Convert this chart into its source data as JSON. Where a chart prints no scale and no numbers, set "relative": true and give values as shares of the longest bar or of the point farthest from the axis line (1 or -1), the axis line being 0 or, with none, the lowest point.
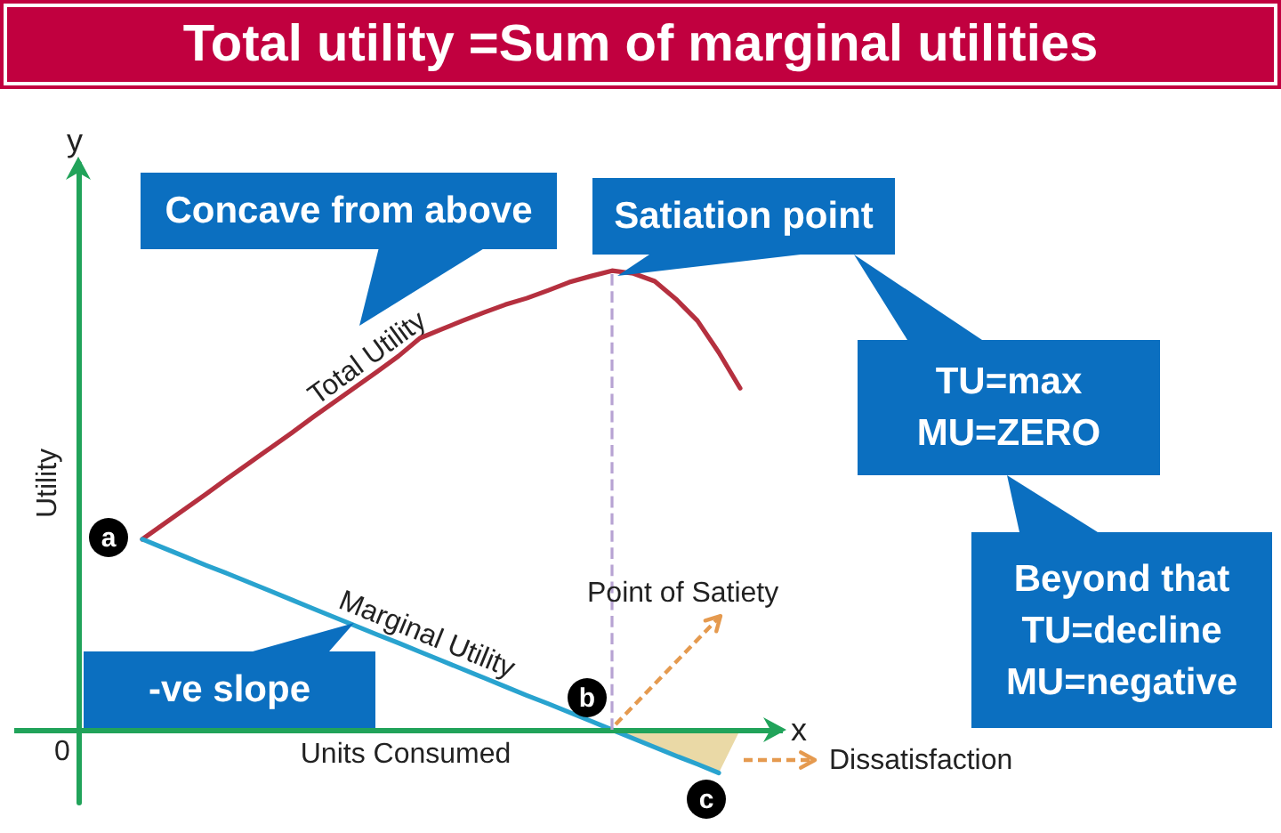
{
  "chart_data": {
    "type": "line",
    "title": "Total utility =Sum of marginal utilities",
    "xlabel": "Units Consumed",
    "ylabel": "Utility",
    "relative": true,
    "categories": [
      null,
      null,
      null,
      null,
      null,
      null,
      null,
      null,
      null,
      null,
      null,
      null,
      null,
      null,
      null,
      null,
      null,
      null,
      null,
      null,
      null,
      null,
      null,
      null,
      null,
      null,
      null,
      null,
      null,
      null,
      null,
      null,
      null,
      null,
      null,
      null,
      null
    ],
    "series": [
      {
        "name": "Total Utility",
        "color": "#b5303f",
        "values": [
          null,
          null,
          null,
          null,
          null,
          null,
          0.415,
          0.448,
          0.481,
          0.514,
          0.548,
          0.581,
          0.614,
          0.647,
          0.681,
          0.714,
          0.747,
          0.78,
          0.814,
          0.853,
          0.872,
          0.891,
          0.909,
          0.926,
          0.94,
          0.957,
          0.975,
          0.988,
          1,
          0.994,
          0.977,
          0.938,
          0.891,
          0.822,
          0.744,
          null,
          null
        ]
      },
      {
        "name": "Marginal Utility",
        "color": "#29a3cf",
        "values": [
          null,
          null,
          null,
          null,
          null,
          null,
          0.415,
          0.396,
          0.377,
          0.358,
          0.34,
          0.321,
          0.302,
          0.283,
          0.264,
          0.245,
          0.226,
          0.207,
          0.189,
          0.17,
          0.151,
          0.132,
          0.113,
          0.094,
          0.075,
          0.057,
          0.038,
          0.019,
          0,
          -0.019,
          -0.038,
          -0.057,
          -0.075,
          -0.094,
          null,
          null,
          null
        ]
      },
      {
        "type": "area",
        "color": "#ead9a6",
        "values": [
          null,
          null,
          null,
          null,
          null,
          null,
          null,
          null,
          null,
          null,
          null,
          null,
          null,
          null,
          null,
          null,
          null,
          null,
          null,
          null,
          null,
          null,
          null,
          null,
          null,
          null,
          null,
          null,
          0,
          -0.019,
          -0.038,
          -0.057,
          -0.075,
          -0.094,
          0,
          null,
          null
        ]
      }
    ],
    "ref_lines": [
      {
        "axis": "y",
        "value": 0,
        "color": "#21a35a"
      }
    ],
    "annotations": [
      "y",
      "x",
      "0",
      "a",
      "b",
      "c",
      "Concave from above",
      "Satiation point",
      "TU=max\nMU=ZERO",
      "Beyond that\nTU=decline\nMU=negative",
      "-ve slope",
      "Point of Satiety",
      "Dissatisfaction"
    ],
    "grid": false,
    "legend": false,
    "marker": "none"
  }
}
